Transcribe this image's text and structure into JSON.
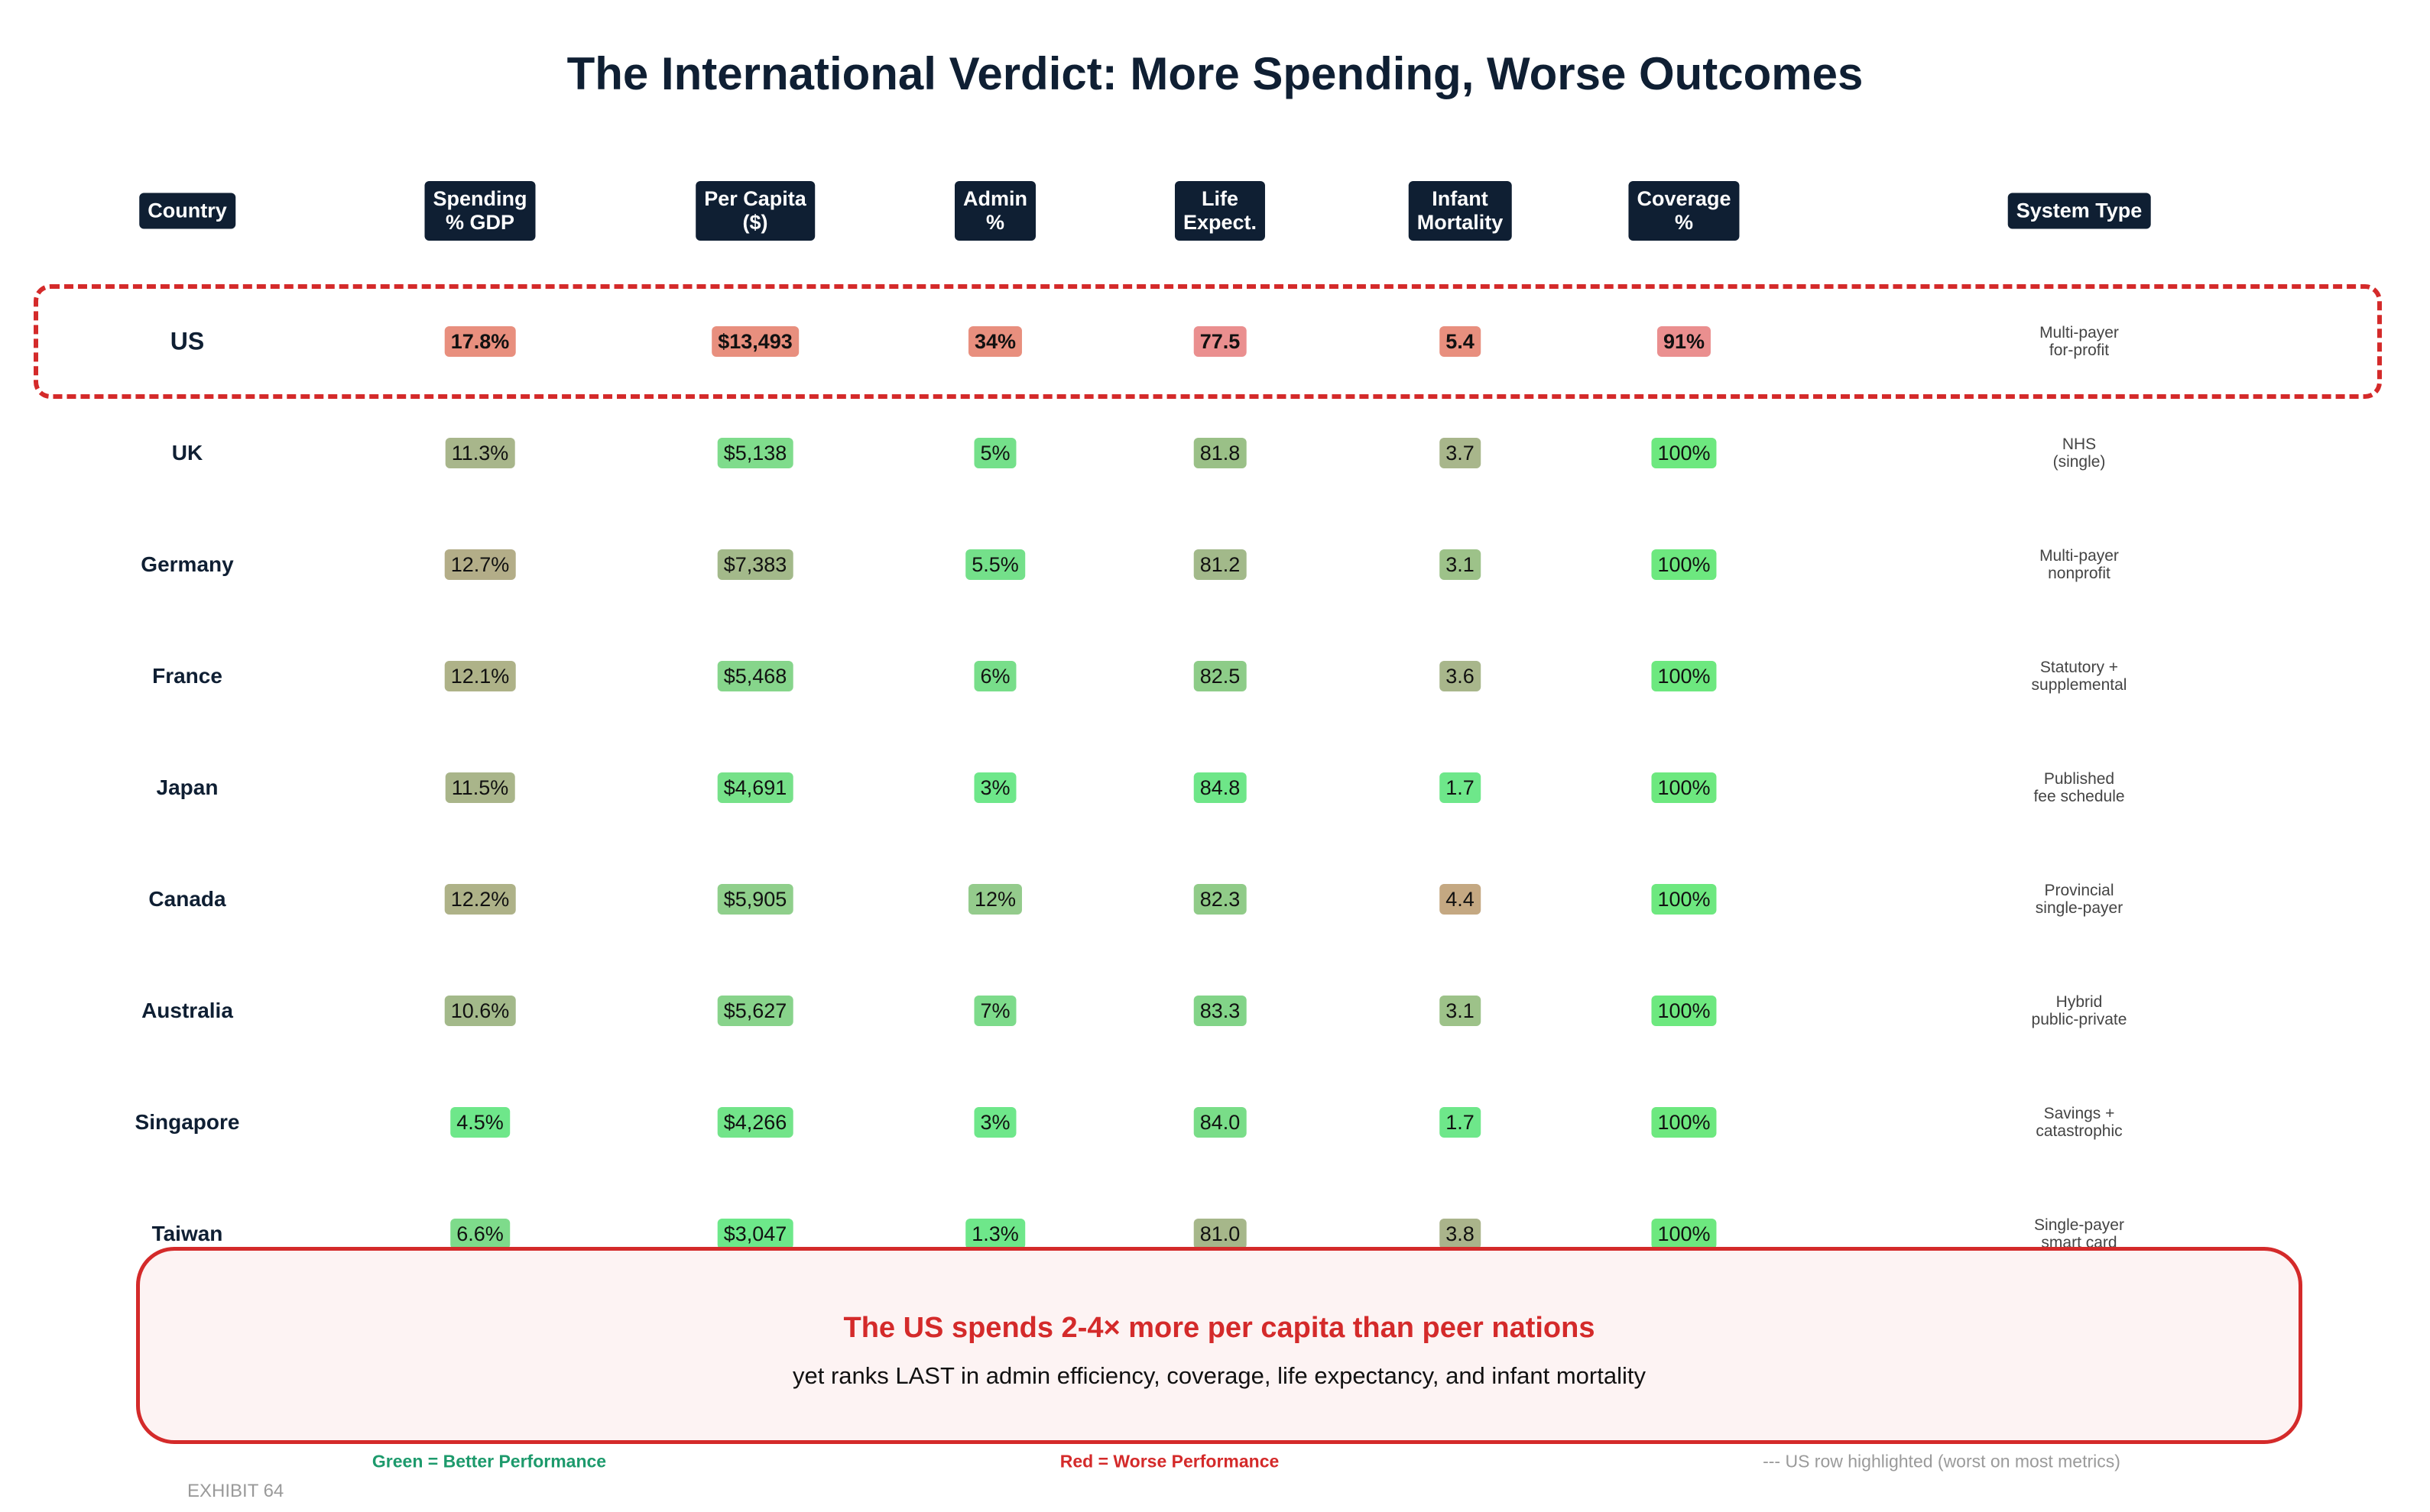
{
  "title": "The International Verdict: More Spending, Worse Outcomes",
  "chart_data": {
    "type": "table",
    "title": "The International Verdict: More Spending, Worse Outcomes",
    "headers": [
      "Country",
      "Spending\n% GDP",
      "Per Capita\n($)",
      "Admin\n%",
      "Life\nExpect.",
      "Infant\nMortality",
      "Coverage\n%",
      "System Type"
    ],
    "rows": [
      {
        "country": "US",
        "highlight": true,
        "cells": [
          {
            "text": "17.8%",
            "color": "#e88f7e"
          },
          {
            "text": "$13,493",
            "color": "#e88f7e"
          },
          {
            "text": "34%",
            "color": "#e88f7e"
          },
          {
            "text": "77.5",
            "color": "#ea8f8f"
          },
          {
            "text": "5.4",
            "color": "#e88f7e"
          },
          {
            "text": "91%",
            "color": "#ea8f8f"
          }
        ],
        "system": "Multi-payer\nfor-profit"
      },
      {
        "country": "UK",
        "cells": [
          {
            "text": "11.3%",
            "color": "#a8b68b"
          },
          {
            "text": "$5,138",
            "color": "#7fdc8c"
          },
          {
            "text": "5%",
            "color": "#74e08a"
          },
          {
            "text": "81.8",
            "color": "#9ac087"
          },
          {
            "text": "3.7",
            "color": "#a8b68b"
          },
          {
            "text": "100%",
            "color": "#6de87f"
          }
        ],
        "system": "NHS\n(single)"
      },
      {
        "country": "Germany",
        "cells": [
          {
            "text": "12.7%",
            "color": "#b3ad88"
          },
          {
            "text": "$7,383",
            "color": "#a3b98a"
          },
          {
            "text": "5.5%",
            "color": "#74e08a"
          },
          {
            "text": "81.2",
            "color": "#a2b98a"
          },
          {
            "text": "3.1",
            "color": "#9dc289"
          },
          {
            "text": "100%",
            "color": "#6de87f"
          }
        ],
        "system": "Multi-payer\nnonprofit"
      },
      {
        "country": "France",
        "cells": [
          {
            "text": "12.1%",
            "color": "#aeb288"
          },
          {
            "text": "$5,468",
            "color": "#86d58b"
          },
          {
            "text": "6%",
            "color": "#78de8a"
          },
          {
            "text": "82.5",
            "color": "#8dcc88"
          },
          {
            "text": "3.6",
            "color": "#a8b68b"
          },
          {
            "text": "100%",
            "color": "#6de87f"
          }
        ],
        "system": "Statutory +\nsupplemental"
      },
      {
        "country": "Japan",
        "cells": [
          {
            "text": "11.5%",
            "color": "#a9b58a"
          },
          {
            "text": "$4,691",
            "color": "#76e189"
          },
          {
            "text": "3%",
            "color": "#6ee78a"
          },
          {
            "text": "84.8",
            "color": "#6ee688"
          },
          {
            "text": "1.7",
            "color": "#6ee78a"
          },
          {
            "text": "100%",
            "color": "#6de87f"
          }
        ],
        "system": "Published\nfee schedule"
      },
      {
        "country": "Canada",
        "cells": [
          {
            "text": "12.2%",
            "color": "#aeb288"
          },
          {
            "text": "$5,905",
            "color": "#8fcf8b"
          },
          {
            "text": "12%",
            "color": "#94cb8c"
          },
          {
            "text": "82.3",
            "color": "#90cb88"
          },
          {
            "text": "4.4",
            "color": "#c4a882"
          },
          {
            "text": "100%",
            "color": "#6de87f"
          }
        ],
        "system": "Provincial\nsingle-payer"
      },
      {
        "country": "Australia",
        "cells": [
          {
            "text": "10.6%",
            "color": "#a3b98a"
          },
          {
            "text": "$5,627",
            "color": "#88d38b"
          },
          {
            "text": "7%",
            "color": "#7ddb8b"
          },
          {
            "text": "83.3",
            "color": "#82d488"
          },
          {
            "text": "3.1",
            "color": "#9dc289"
          },
          {
            "text": "100%",
            "color": "#6de87f"
          }
        ],
        "system": "Hybrid\npublic-private"
      },
      {
        "country": "Singapore",
        "cells": [
          {
            "text": "4.5%",
            "color": "#6ee78a"
          },
          {
            "text": "$4,266",
            "color": "#72e489"
          },
          {
            "text": "3%",
            "color": "#6ee78a"
          },
          {
            "text": "84.0",
            "color": "#79dd88"
          },
          {
            "text": "1.7",
            "color": "#6ee78a"
          },
          {
            "text": "100%",
            "color": "#6de87f"
          }
        ],
        "system": "Savings +\ncatastrophic"
      },
      {
        "country": "Taiwan",
        "cells": [
          {
            "text": "6.6%",
            "color": "#7edb8b"
          },
          {
            "text": "$3,047",
            "color": "#6de88a"
          },
          {
            "text": "1.3%",
            "color": "#6ee78a"
          },
          {
            "text": "81.0",
            "color": "#a6b78a"
          },
          {
            "text": "3.8",
            "color": "#aab48b"
          },
          {
            "text": "100%",
            "color": "#6de87f"
          }
        ],
        "system": "Single-payer\nsmart card"
      }
    ]
  },
  "callout": {
    "headline": "The US spends 2-4× more per capita than peer nations",
    "subline": "yet ranks LAST in admin efficiency, coverage, life expectancy, and infant mortality"
  },
  "legend": {
    "green": "Green = Better Performance",
    "red": "Red = Worse Performance",
    "note": "--- US row highlighted (worst on most metrics)"
  },
  "exhibit": "EXHIBIT 64",
  "colors": {
    "accent_red": "#d42a2a",
    "navy": "#0f1f33",
    "green_text": "#1d9a6c"
  }
}
